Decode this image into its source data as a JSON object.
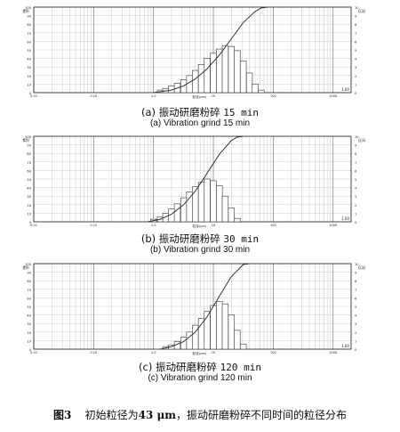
{
  "chart_data": [
    {
      "type": "bar",
      "xscale": "log",
      "xlim": [
        0.01,
        2000
      ],
      "ylim_left": [
        0,
        100
      ],
      "ylim_right": [
        0,
        10
      ],
      "x_ticks": [
        "0.01",
        "0.10",
        "1.0",
        "10",
        "100",
        "1000"
      ],
      "y_left_ticks": [
        "100",
        "90",
        "80",
        "70",
        "60",
        "50",
        "40",
        "30",
        "20",
        "10",
        "0"
      ],
      "y_right_ticks": [
        "10",
        "9",
        "8",
        "7",
        "6",
        "5",
        "4",
        "3",
        "2",
        "1",
        "0"
      ],
      "left_axis_label": "累积",
      "right_axis_label": "区间",
      "xlabel": "粒径(μm)",
      "corner_label": "1.00",
      "grid": true,
      "caption_cn_prefix": "(a) 振动研磨粉碎",
      "caption_cn_time": "15 min",
      "caption_en": "(a) Vibration grind 15 min",
      "bins_x": [
        1.3,
        1.6,
        2.0,
        2.5,
        3.2,
        4.0,
        5.0,
        6.3,
        7.9,
        10,
        12.6,
        15.8,
        20,
        25,
        31.6,
        40,
        50,
        63
      ],
      "bins_y": [
        0.3,
        0.5,
        0.8,
        1.1,
        1.5,
        2.0,
        2.6,
        3.3,
        4.0,
        4.6,
        5.1,
        5.5,
        5.4,
        4.9,
        3.7,
        2.3,
        1.0,
        0.3
      ],
      "cumulative_x": [
        1.0,
        2.0,
        3.2,
        5.0,
        7.9,
        12.6,
        20,
        31.6,
        50,
        63,
        80
      ],
      "cumulative_y": [
        0,
        3,
        8,
        16,
        28,
        44,
        63,
        82,
        95,
        99,
        100
      ]
    },
    {
      "type": "bar",
      "xscale": "log",
      "xlim": [
        0.01,
        2000
      ],
      "ylim_left": [
        0,
        100
      ],
      "ylim_right": [
        0,
        10
      ],
      "x_ticks": [
        "0.01",
        "0.10",
        "1.0",
        "10",
        "100",
        "1000"
      ],
      "y_left_ticks": [
        "100",
        "90",
        "80",
        "70",
        "60",
        "50",
        "40",
        "30",
        "20",
        "10",
        "0"
      ],
      "y_right_ticks": [
        "10",
        "9",
        "8",
        "7",
        "6",
        "5",
        "4",
        "3",
        "2",
        "1",
        "0"
      ],
      "left_axis_label": "累积",
      "right_axis_label": "区间",
      "xlabel": "粒径(μm)",
      "corner_label": "1.00",
      "grid": true,
      "caption_cn_prefix": "(b) 振动研磨粉碎",
      "caption_cn_time": "30 min",
      "caption_en": "(b) Vibration grind 30 min",
      "bins_x": [
        1.0,
        1.3,
        1.6,
        2.0,
        2.5,
        3.2,
        4.0,
        5.0,
        6.3,
        7.9,
        10,
        12.6,
        15.8,
        20,
        25
      ],
      "bins_y": [
        0.3,
        0.6,
        1.0,
        1.5,
        2.1,
        2.8,
        3.5,
        4.1,
        4.6,
        5.0,
        4.8,
        4.2,
        3.0,
        1.6,
        0.4
      ],
      "cumulative_x": [
        0.8,
        1.3,
        2.0,
        3.2,
        5.0,
        7.9,
        12.6,
        20,
        25,
        32
      ],
      "cumulative_y": [
        0,
        3,
        9,
        20,
        36,
        57,
        79,
        95,
        99,
        100
      ]
    },
    {
      "type": "bar",
      "xscale": "log",
      "xlim": [
        0.01,
        2000
      ],
      "ylim_left": [
        0,
        100
      ],
      "ylim_right": [
        0,
        10
      ],
      "x_ticks": [
        "0.01",
        "0.10",
        "1.0",
        "10",
        "100",
        "1000"
      ],
      "y_left_ticks": [
        "100",
        "90",
        "80",
        "70",
        "60",
        "50",
        "40",
        "30",
        "20",
        "10",
        "0"
      ],
      "y_right_ticks": [
        "10",
        "9",
        "8",
        "7",
        "6",
        "5",
        "4",
        "3",
        "2",
        "1",
        "0"
      ],
      "left_axis_label": "累积",
      "right_axis_label": "区间",
      "xlabel": "粒径(μm)",
      "corner_label": "1.00",
      "grid": true,
      "caption_cn_prefix": "(c) 振动研磨粉碎",
      "caption_cn_time": "120 min",
      "caption_en": "(c) Vibration grind 120 min",
      "bins_x": [
        1.6,
        2.0,
        2.5,
        3.2,
        4.0,
        5.0,
        6.3,
        7.9,
        10,
        12.6,
        15.8,
        20,
        25,
        31.6
      ],
      "bins_y": [
        0.3,
        0.5,
        0.9,
        1.4,
        2.0,
        2.8,
        3.6,
        4.4,
        5.1,
        5.6,
        5.3,
        4.0,
        2.2,
        0.6
      ],
      "cumulative_x": [
        1.3,
        2.0,
        3.2,
        5.0,
        7.9,
        12.6,
        20,
        31.6,
        40
      ],
      "cumulative_y": [
        0,
        3,
        9,
        20,
        38,
        62,
        85,
        99,
        100
      ]
    }
  ],
  "figure_caption": {
    "label": "图3",
    "prefix": "初始粒径为",
    "size": "43 μm",
    "suffix": "，振动研磨粉碎不同时间的粒径分布"
  }
}
